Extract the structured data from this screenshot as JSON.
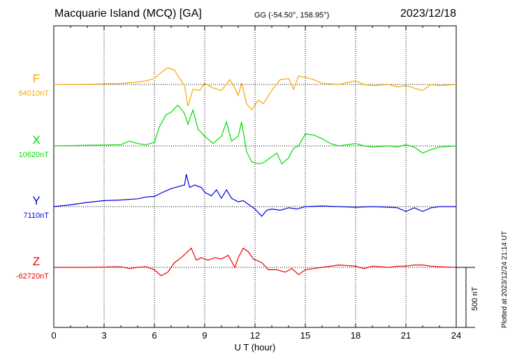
{
  "header": {
    "title": "Macquarie Island (MCQ)  [GA]",
    "coords": "GG (-54.50°, 158.95°)",
    "date": "2023/12/18"
  },
  "plotted": "Plotted at 2023/12/24 21:14 UT",
  "colors": {
    "F": "#f5a800",
    "X": "#00dd00",
    "Y": "#0000dd",
    "Z": "#ee0000"
  },
  "chart_data": {
    "type": "line",
    "title": "Macquarie Island (MCQ)  [GA]",
    "xlabel": "U T (hour)",
    "xlim": [
      0,
      24
    ],
    "x_ticks": [
      "0",
      "3",
      "6",
      "9",
      "12",
      "15",
      "18",
      "21",
      "24"
    ],
    "grid": true,
    "scale_bar_label": "500 nT",
    "scale_bar_nT": 500,
    "series": [
      {
        "name": "F",
        "baseline_label": "64010nT",
        "baseline": 64010,
        "points": [
          [
            0,
            64010
          ],
          [
            2,
            64012
          ],
          [
            4,
            64018
          ],
          [
            5,
            64030
          ],
          [
            5.5,
            64040
          ],
          [
            6,
            64060
          ],
          [
            6.5,
            64120
          ],
          [
            6.8,
            64150
          ],
          [
            7.2,
            64130
          ],
          [
            7.5,
            64060
          ],
          [
            7.8,
            64000
          ],
          [
            8.0,
            63830
          ],
          [
            8.3,
            63970
          ],
          [
            8.7,
            63960
          ],
          [
            9.0,
            64020
          ],
          [
            9.5,
            63980
          ],
          [
            10,
            63960
          ],
          [
            10.5,
            64050
          ],
          [
            10.8,
            63980
          ],
          [
            11,
            63920
          ],
          [
            11.2,
            64020
          ],
          [
            11.5,
            63850
          ],
          [
            11.8,
            63800
          ],
          [
            12.2,
            63880
          ],
          [
            12.5,
            63850
          ],
          [
            13,
            63960
          ],
          [
            13.5,
            64050
          ],
          [
            14,
            64060
          ],
          [
            14.3,
            63970
          ],
          [
            14.6,
            64080
          ],
          [
            15,
            64070
          ],
          [
            15.5,
            64050
          ],
          [
            16,
            64020
          ],
          [
            17,
            64010
          ],
          [
            18,
            64040
          ],
          [
            18.5,
            64010
          ],
          [
            19,
            64000
          ],
          [
            20,
            64010
          ],
          [
            20.5,
            63990
          ],
          [
            21,
            64000
          ],
          [
            21.5,
            63980
          ],
          [
            22,
            63960
          ],
          [
            22.5,
            64010
          ],
          [
            23,
            64000
          ],
          [
            24,
            64010
          ]
        ]
      },
      {
        "name": "X",
        "baseline_label": "10620nT",
        "baseline": 10620,
        "points": [
          [
            0,
            10620
          ],
          [
            2,
            10625
          ],
          [
            4,
            10630
          ],
          [
            4.5,
            10660
          ],
          [
            5,
            10640
          ],
          [
            5.5,
            10630
          ],
          [
            6,
            10650
          ],
          [
            6.3,
            10780
          ],
          [
            6.7,
            10880
          ],
          [
            7.0,
            10900
          ],
          [
            7.4,
            10960
          ],
          [
            7.8,
            10890
          ],
          [
            8.0,
            10800
          ],
          [
            8.3,
            10920
          ],
          [
            8.6,
            10760
          ],
          [
            9.0,
            10700
          ],
          [
            9.5,
            10640
          ],
          [
            10.0,
            10700
          ],
          [
            10.3,
            10820
          ],
          [
            10.6,
            10660
          ],
          [
            11,
            10700
          ],
          [
            11.2,
            10820
          ],
          [
            11.5,
            10570
          ],
          [
            11.8,
            10490
          ],
          [
            12.2,
            10470
          ],
          [
            12.5,
            10480
          ],
          [
            13,
            10530
          ],
          [
            13.3,
            10560
          ],
          [
            13.6,
            10470
          ],
          [
            14,
            10520
          ],
          [
            14.3,
            10600
          ],
          [
            14.6,
            10620
          ],
          [
            15,
            10720
          ],
          [
            15.5,
            10710
          ],
          [
            16,
            10680
          ],
          [
            16.5,
            10640
          ],
          [
            17,
            10620
          ],
          [
            18,
            10640
          ],
          [
            18.5,
            10620
          ],
          [
            19,
            10610
          ],
          [
            20,
            10620
          ],
          [
            20.5,
            10610
          ],
          [
            21,
            10630
          ],
          [
            21.5,
            10610
          ],
          [
            22,
            10560
          ],
          [
            22.5,
            10590
          ],
          [
            23,
            10610
          ],
          [
            24,
            10620
          ]
        ]
      },
      {
        "name": "Y",
        "baseline_label": "7110nT",
        "baseline": 7110,
        "points": [
          [
            0,
            7110
          ],
          [
            1,
            7125
          ],
          [
            2,
            7145
          ],
          [
            3,
            7160
          ],
          [
            4,
            7165
          ],
          [
            5,
            7175
          ],
          [
            5.5,
            7190
          ],
          [
            6,
            7195
          ],
          [
            6.5,
            7230
          ],
          [
            7,
            7260
          ],
          [
            7.5,
            7280
          ],
          [
            7.8,
            7290
          ],
          [
            7.9,
            7380
          ],
          [
            8.1,
            7270
          ],
          [
            8.4,
            7290
          ],
          [
            8.8,
            7270
          ],
          [
            9,
            7230
          ],
          [
            9.4,
            7200
          ],
          [
            9.7,
            7250
          ],
          [
            10,
            7180
          ],
          [
            10.3,
            7250
          ],
          [
            10.6,
            7180
          ],
          [
            11,
            7150
          ],
          [
            11.3,
            7160
          ],
          [
            11.6,
            7130
          ],
          [
            12,
            7090
          ],
          [
            12.4,
            7030
          ],
          [
            12.7,
            7080
          ],
          [
            13,
            7090
          ],
          [
            13.5,
            7080
          ],
          [
            14,
            7100
          ],
          [
            14.5,
            7090
          ],
          [
            15,
            7110
          ],
          [
            16,
            7115
          ],
          [
            17,
            7110
          ],
          [
            18,
            7105
          ],
          [
            19,
            7110
          ],
          [
            20,
            7105
          ],
          [
            20.5,
            7100
          ],
          [
            21,
            7070
          ],
          [
            21.5,
            7100
          ],
          [
            22,
            7070
          ],
          [
            22.5,
            7100
          ],
          [
            23,
            7110
          ],
          [
            24,
            7110
          ]
        ]
      },
      {
        "name": "Z",
        "baseline_label": "-62720nT",
        "baseline": -62720,
        "points": [
          [
            0,
            -62720
          ],
          [
            2,
            -62720
          ],
          [
            4,
            -62715
          ],
          [
            4.5,
            -62730
          ],
          [
            5,
            -62720
          ],
          [
            5.5,
            -62715
          ],
          [
            6,
            -62740
          ],
          [
            6.4,
            -62790
          ],
          [
            6.8,
            -62760
          ],
          [
            7.2,
            -62680
          ],
          [
            7.6,
            -62640
          ],
          [
            7.9,
            -62600
          ],
          [
            8.2,
            -62560
          ],
          [
            8.5,
            -62660
          ],
          [
            8.8,
            -62640
          ],
          [
            9.2,
            -62660
          ],
          [
            9.6,
            -62640
          ],
          [
            10,
            -62650
          ],
          [
            10.4,
            -62620
          ],
          [
            10.8,
            -62720
          ],
          [
            11,
            -62640
          ],
          [
            11.3,
            -62560
          ],
          [
            11.6,
            -62590
          ],
          [
            11.9,
            -62650
          ],
          [
            12.4,
            -62680
          ],
          [
            12.8,
            -62740
          ],
          [
            13.3,
            -62740
          ],
          [
            13.8,
            -62760
          ],
          [
            14.2,
            -62730
          ],
          [
            14.6,
            -62780
          ],
          [
            15,
            -62740
          ],
          [
            15.5,
            -62730
          ],
          [
            16,
            -62720
          ],
          [
            17,
            -62700
          ],
          [
            18,
            -62710
          ],
          [
            18.5,
            -62730
          ],
          [
            19,
            -62710
          ],
          [
            20,
            -62720
          ],
          [
            20.5,
            -62710
          ],
          [
            21,
            -62710
          ],
          [
            21.5,
            -62700
          ],
          [
            22,
            -62700
          ],
          [
            22.5,
            -62710
          ],
          [
            23,
            -62715
          ],
          [
            24,
            -62720
          ]
        ]
      }
    ]
  }
}
